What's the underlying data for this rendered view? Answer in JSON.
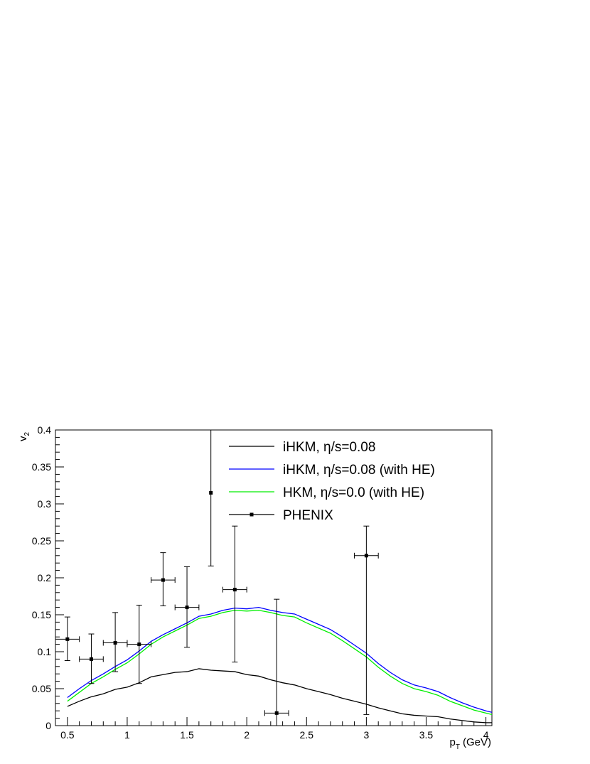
{
  "chart_data": {
    "type": "line",
    "title": "",
    "xlabel": {
      "main": "p",
      "sub": "T",
      "unit": "(GeV)"
    },
    "ylabel": {
      "main": "v",
      "sub": "2"
    },
    "xlim": [
      0.4,
      4.05
    ],
    "ylim": [
      0,
      0.4
    ],
    "x_ticks": [
      0.5,
      1,
      1.5,
      2,
      2.5,
      3,
      3.5,
      4
    ],
    "x_tick_labels": [
      "0.5",
      "1",
      "1.5",
      "2",
      "2.5",
      "3",
      "3.5",
      "4"
    ],
    "y_ticks": [
      0,
      0.05,
      0.1,
      0.15,
      0.2,
      0.25,
      0.3,
      0.35,
      0.4
    ],
    "y_tick_labels": [
      "0",
      "0.05",
      "0.1",
      "0.15",
      "0.2",
      "0.25",
      "0.3",
      "0.35",
      "0.4"
    ],
    "grid": false,
    "legend_position": "top-right",
    "series": [
      {
        "name": "iHKM, η/s=0.08",
        "color": "#000000",
        "x": [
          0.5,
          0.6,
          0.7,
          0.8,
          0.9,
          1.0,
          1.1,
          1.2,
          1.3,
          1.4,
          1.5,
          1.6,
          1.7,
          1.8,
          1.9,
          2.0,
          2.1,
          2.2,
          2.3,
          2.4,
          2.5,
          2.6,
          2.7,
          2.8,
          2.9,
          3.0,
          3.1,
          3.2,
          3.3,
          3.4,
          3.5,
          3.6,
          3.7,
          3.8,
          3.9,
          4.0,
          4.05
        ],
        "y": [
          0.026,
          0.033,
          0.039,
          0.043,
          0.049,
          0.052,
          0.058,
          0.066,
          0.069,
          0.072,
          0.073,
          0.077,
          0.075,
          0.074,
          0.073,
          0.069,
          0.067,
          0.062,
          0.058,
          0.055,
          0.05,
          0.046,
          0.042,
          0.037,
          0.033,
          0.029,
          0.024,
          0.02,
          0.016,
          0.014,
          0.013,
          0.012,
          0.009,
          0.007,
          0.005,
          0.004,
          0.004
        ]
      },
      {
        "name": "iHKM, η/s=0.08 (with HE)",
        "color": "#0000ff",
        "x": [
          0.5,
          0.6,
          0.7,
          0.8,
          0.9,
          1.0,
          1.1,
          1.2,
          1.3,
          1.4,
          1.5,
          1.6,
          1.7,
          1.8,
          1.9,
          2.0,
          2.1,
          2.2,
          2.3,
          2.4,
          2.5,
          2.6,
          2.7,
          2.8,
          2.9,
          3.0,
          3.1,
          3.2,
          3.3,
          3.4,
          3.5,
          3.6,
          3.7,
          3.8,
          3.9,
          4.0,
          4.05
        ],
        "y": [
          0.038,
          0.05,
          0.061,
          0.07,
          0.08,
          0.089,
          0.101,
          0.114,
          0.123,
          0.131,
          0.139,
          0.148,
          0.151,
          0.156,
          0.159,
          0.158,
          0.16,
          0.156,
          0.153,
          0.151,
          0.144,
          0.137,
          0.13,
          0.12,
          0.109,
          0.098,
          0.084,
          0.072,
          0.062,
          0.055,
          0.051,
          0.046,
          0.038,
          0.031,
          0.025,
          0.02,
          0.018
        ]
      },
      {
        "name": "HKM, η/s=0.0 (with HE)",
        "color": "#00ee00",
        "x": [
          0.5,
          0.6,
          0.7,
          0.8,
          0.9,
          1.0,
          1.1,
          1.2,
          1.3,
          1.4,
          1.5,
          1.6,
          1.7,
          1.8,
          1.9,
          2.0,
          2.1,
          2.2,
          2.3,
          2.4,
          2.5,
          2.6,
          2.7,
          2.8,
          2.9,
          3.0,
          3.1,
          3.2,
          3.3,
          3.4,
          3.5,
          3.6,
          3.7,
          3.8,
          3.9,
          4.0,
          4.05
        ],
        "y": [
          0.033,
          0.045,
          0.057,
          0.066,
          0.076,
          0.085,
          0.097,
          0.11,
          0.12,
          0.128,
          0.136,
          0.145,
          0.148,
          0.153,
          0.156,
          0.155,
          0.156,
          0.153,
          0.149,
          0.147,
          0.139,
          0.132,
          0.125,
          0.115,
          0.104,
          0.093,
          0.079,
          0.067,
          0.057,
          0.05,
          0.046,
          0.041,
          0.033,
          0.027,
          0.021,
          0.017,
          0.015
        ]
      },
      {
        "name": "PHENIX",
        "color": "#000000",
        "marker": "square",
        "points": [
          {
            "x": 0.5,
            "y": 0.117,
            "xerr": 0.1,
            "ylo": 0.088,
            "yhi": 0.147
          },
          {
            "x": 0.7,
            "y": 0.09,
            "xerr": 0.1,
            "ylo": 0.057,
            "yhi": 0.124
          },
          {
            "x": 0.9,
            "y": 0.112,
            "xerr": 0.1,
            "ylo": 0.073,
            "yhi": 0.153
          },
          {
            "x": 1.1,
            "y": 0.11,
            "xerr": 0.1,
            "ylo": 0.057,
            "yhi": 0.163
          },
          {
            "x": 1.3,
            "y": 0.197,
            "xerr": 0.1,
            "ylo": 0.162,
            "yhi": 0.234
          },
          {
            "x": 1.5,
            "y": 0.16,
            "xerr": 0.1,
            "ylo": 0.106,
            "yhi": 0.215
          },
          {
            "x": 1.7,
            "y": 0.315,
            "xerr": 0.0,
            "ylo": 0.216,
            "yhi": 0.4
          },
          {
            "x": 1.9,
            "y": 0.184,
            "xerr": 0.1,
            "ylo": 0.086,
            "yhi": 0.27
          },
          {
            "x": 2.25,
            "y": 0.017,
            "xerr": 0.1,
            "ylo": 0.0,
            "yhi": 0.171
          },
          {
            "x": 3.0,
            "y": 0.23,
            "xerr": 0.1,
            "ylo": 0.015,
            "yhi": 0.27
          }
        ]
      }
    ]
  }
}
